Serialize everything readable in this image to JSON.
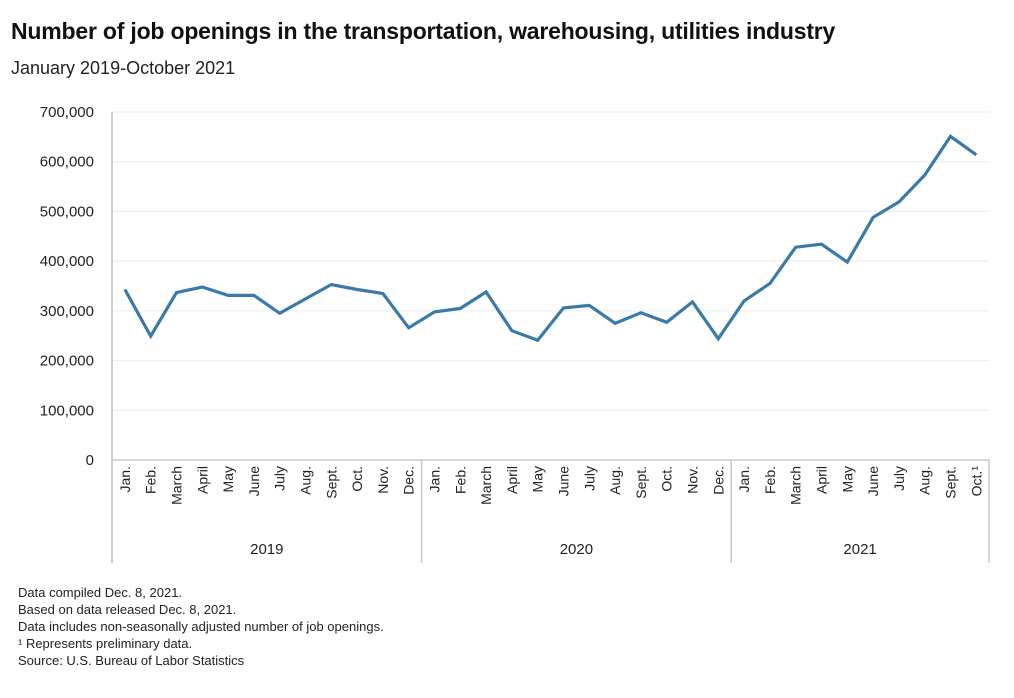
{
  "title": "Number of job openings in the transportation, warehousing, utilities industry",
  "subtitle": "January 2019-October 2021",
  "chart_data": {
    "type": "line",
    "title": "Number of job openings in the transportation, warehousing, utilities industry",
    "subtitle": "January 2019-October 2021",
    "xlabel": "",
    "ylabel": "",
    "ylim": [
      0,
      700000
    ],
    "yticks": [
      0,
      100000,
      200000,
      300000,
      400000,
      500000,
      600000,
      700000
    ],
    "ytick_labels": [
      "0",
      "100,000",
      "200,000",
      "300,000",
      "400,000",
      "500,000",
      "600,000",
      "700,000"
    ],
    "grid": true,
    "color": "#3a7aa8",
    "years": [
      {
        "label": "2019",
        "months": 12
      },
      {
        "label": "2020",
        "months": 12
      },
      {
        "label": "2021",
        "months": 10
      }
    ],
    "categories": [
      "Jan.",
      "Feb.",
      "March",
      "April",
      "May",
      "June",
      "July",
      "Aug.",
      "Sept.",
      "Oct.",
      "Nov.",
      "Dec.",
      "Jan.",
      "Feb.",
      "March",
      "April",
      "May",
      "June",
      "July",
      "Aug.",
      "Sept.",
      "Oct.",
      "Nov.",
      "Dec.",
      "Jan.",
      "Feb.",
      "March",
      "April",
      "May",
      "June",
      "July",
      "Aug.",
      "Sept.",
      "Oct.¹"
    ],
    "series": [
      {
        "name": "Job openings",
        "values": [
          343000,
          249000,
          337000,
          348000,
          331000,
          331000,
          295000,
          324000,
          353000,
          343000,
          335000,
          266000,
          298000,
          305000,
          338000,
          260000,
          241000,
          306000,
          311000,
          275000,
          296000,
          277000,
          318000,
          244000,
          320000,
          355000,
          428000,
          434000,
          398000,
          488000,
          519000,
          573000,
          651000,
          614000
        ]
      }
    ]
  },
  "footer": {
    "lines": [
      "Data compiled Dec. 8, 2021.",
      "Based on data released Dec. 8, 2021.",
      "Data includes non-seasonally adjusted number of job openings.",
      "¹ Represents preliminary data.",
      "Source: U.S. Bureau of Labor Statistics"
    ]
  }
}
